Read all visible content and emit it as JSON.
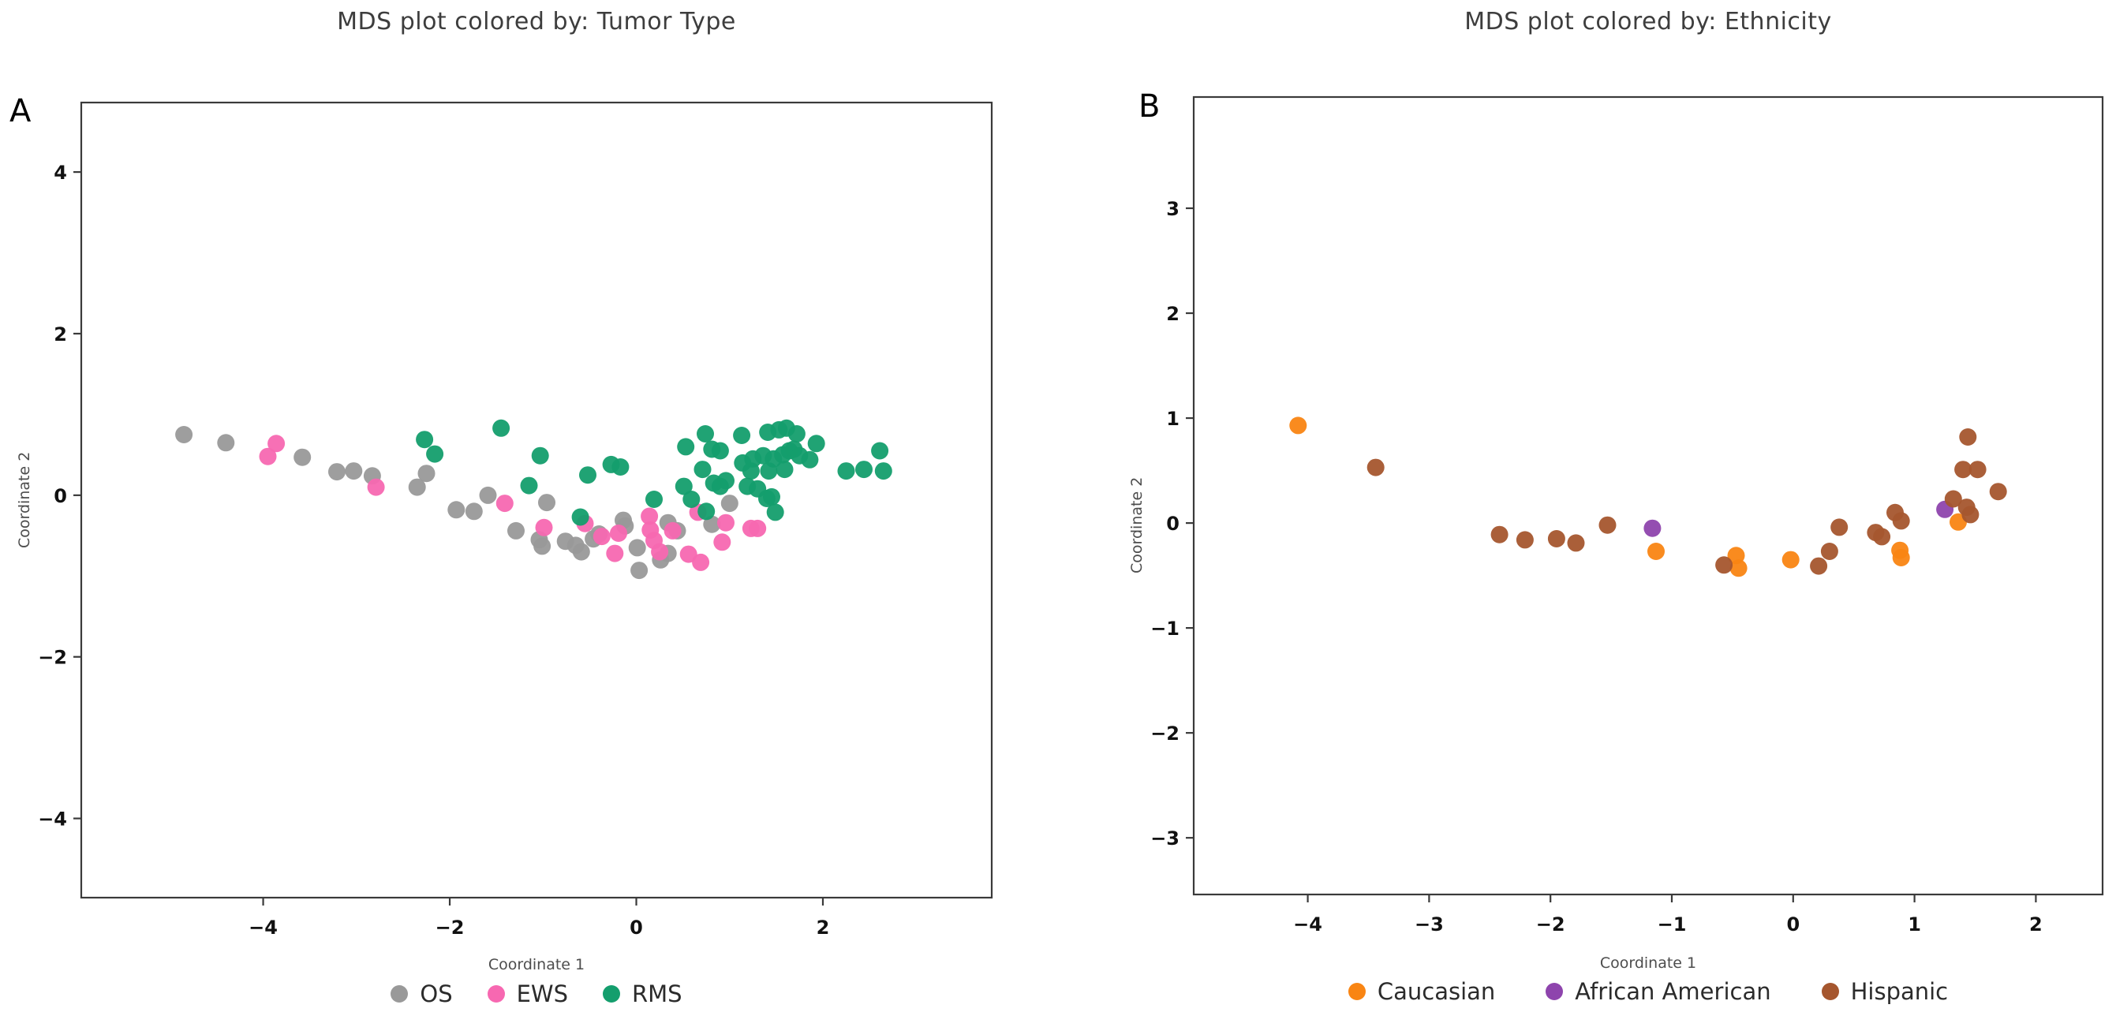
{
  "figure": {
    "background": "#ffffff",
    "spine_color": "#3a3a3a",
    "tick_label_color": "#111111",
    "title_color": "#3d3d3d"
  },
  "chart_data": [
    {
      "type": "scatter",
      "panel_label": "A",
      "title": "MDS plot colored by: Tumor Type",
      "xlabel": "Coordinate 1",
      "ylabel": "Coordinate 2",
      "xlim": [
        -5.95,
        3.81
      ],
      "ylim": [
        -4.98,
        4.86
      ],
      "xticks": [
        -4,
        -2,
        0,
        2
      ],
      "yticks": [
        -4,
        -2,
        0,
        2,
        4
      ],
      "grid": false,
      "legend_position": "bottom",
      "series": [
        {
          "name": "OS",
          "color": "#999999",
          "points": [
            [
              -4.85,
              0.75
            ],
            [
              -4.4,
              0.65
            ],
            [
              -3.58,
              0.47
            ],
            [
              -3.21,
              0.29
            ],
            [
              -3.03,
              0.3
            ],
            [
              -2.83,
              0.24
            ],
            [
              -2.35,
              0.1
            ],
            [
              -2.25,
              0.27
            ],
            [
              -1.93,
              -0.18
            ],
            [
              -1.74,
              -0.2
            ],
            [
              -1.59,
              0.0
            ],
            [
              -1.29,
              -0.44
            ],
            [
              -1.04,
              -0.55
            ],
            [
              -1.01,
              -0.63
            ],
            [
              -0.96,
              -0.09
            ],
            [
              -0.76,
              -0.57
            ],
            [
              -0.65,
              -0.62
            ],
            [
              -0.59,
              -0.7
            ],
            [
              -0.46,
              -0.54
            ],
            [
              -0.4,
              -0.48
            ],
            [
              -0.14,
              -0.31
            ],
            [
              -0.12,
              -0.38
            ],
            [
              0.01,
              -0.65
            ],
            [
              0.03,
              -0.93
            ],
            [
              0.26,
              -0.8
            ],
            [
              0.34,
              -0.72
            ],
            [
              0.44,
              -0.44
            ],
            [
              0.34,
              -0.34
            ],
            [
              0.81,
              -0.36
            ],
            [
              1.0,
              -0.1
            ]
          ]
        },
        {
          "name": "EWS",
          "color": "#f768b1",
          "points": [
            [
              -3.95,
              0.48
            ],
            [
              -3.86,
              0.64
            ],
            [
              -2.79,
              0.1
            ],
            [
              -1.41,
              -0.1
            ],
            [
              -0.99,
              -0.4
            ],
            [
              -0.55,
              -0.35
            ],
            [
              -0.37,
              -0.51
            ],
            [
              -0.23,
              -0.72
            ],
            [
              -0.19,
              -0.47
            ],
            [
              0.14,
              -0.26
            ],
            [
              0.15,
              -0.43
            ],
            [
              0.19,
              -0.56
            ],
            [
              0.25,
              -0.7
            ],
            [
              0.39,
              -0.44
            ],
            [
              0.56,
              -0.73
            ],
            [
              0.66,
              -0.21
            ],
            [
              0.69,
              -0.83
            ],
            [
              0.92,
              -0.58
            ],
            [
              0.96,
              -0.34
            ],
            [
              1.23,
              -0.41
            ],
            [
              1.3,
              -0.41
            ]
          ]
        },
        {
          "name": "RMS",
          "color": "#149e6d",
          "points": [
            [
              -2.27,
              0.69
            ],
            [
              -2.16,
              0.51
            ],
            [
              -1.45,
              0.83
            ],
            [
              -1.15,
              0.12
            ],
            [
              -1.03,
              0.49
            ],
            [
              -0.6,
              -0.27
            ],
            [
              -0.52,
              0.25
            ],
            [
              -0.27,
              0.38
            ],
            [
              -0.17,
              0.35
            ],
            [
              0.19,
              -0.05
            ],
            [
              0.51,
              0.11
            ],
            [
              0.53,
              0.6
            ],
            [
              0.59,
              -0.05
            ],
            [
              0.71,
              0.32
            ],
            [
              0.74,
              0.76
            ],
            [
              0.75,
              -0.2
            ],
            [
              0.81,
              0.57
            ],
            [
              0.83,
              0.15
            ],
            [
              0.9,
              0.55
            ],
            [
              0.9,
              0.11
            ],
            [
              0.96,
              0.18
            ],
            [
              1.13,
              0.74
            ],
            [
              1.14,
              0.4
            ],
            [
              1.19,
              0.11
            ],
            [
              1.23,
              0.3
            ],
            [
              1.25,
              0.45
            ],
            [
              1.3,
              0.08
            ],
            [
              1.36,
              0.49
            ],
            [
              1.4,
              -0.04
            ],
            [
              1.41,
              0.78
            ],
            [
              1.42,
              0.3
            ],
            [
              1.45,
              -0.02
            ],
            [
              1.47,
              0.45
            ],
            [
              1.49,
              -0.21
            ],
            [
              1.53,
              0.81
            ],
            [
              1.57,
              0.5
            ],
            [
              1.59,
              0.32
            ],
            [
              1.61,
              0.83
            ],
            [
              1.64,
              0.55
            ],
            [
              1.69,
              0.57
            ],
            [
              1.72,
              0.76
            ],
            [
              1.75,
              0.49
            ],
            [
              1.86,
              0.44
            ],
            [
              1.93,
              0.64
            ],
            [
              2.25,
              0.3
            ],
            [
              2.44,
              0.32
            ],
            [
              2.61,
              0.55
            ],
            [
              2.65,
              0.3
            ]
          ]
        }
      ]
    },
    {
      "type": "scatter",
      "panel_label": "B",
      "title": "MDS plot colored by: Ethnicity",
      "xlabel": "Coordinate 1",
      "ylabel": "Coordinate 2",
      "xlim": [
        -4.94,
        2.55
      ],
      "ylim": [
        -3.54,
        4.06
      ],
      "xticks": [
        -4,
        -3,
        -2,
        -1,
        0,
        1,
        2
      ],
      "yticks": [
        -3,
        -2,
        -1,
        0,
        1,
        2,
        3
      ],
      "grid": false,
      "legend_position": "bottom",
      "series": [
        {
          "name": "Caucasian",
          "color": "#f98513",
          "points": [
            [
              -4.08,
              0.93
            ],
            [
              -1.13,
              -0.27
            ],
            [
              -0.47,
              -0.31
            ],
            [
              -0.45,
              -0.43
            ],
            [
              -0.02,
              -0.35
            ],
            [
              0.88,
              -0.26
            ],
            [
              0.89,
              -0.33
            ],
            [
              1.36,
              0.01
            ]
          ]
        },
        {
          "name": "African American",
          "color": "#8e44ad",
          "points": [
            [
              -1.16,
              -0.05
            ],
            [
              1.25,
              0.13
            ]
          ]
        },
        {
          "name": "Hispanic",
          "color": "#a5562e",
          "points": [
            [
              -3.44,
              0.53
            ],
            [
              -2.42,
              -0.11
            ],
            [
              -2.21,
              -0.16
            ],
            [
              -1.95,
              -0.15
            ],
            [
              -1.79,
              -0.19
            ],
            [
              -1.53,
              -0.02
            ],
            [
              -0.57,
              -0.4
            ],
            [
              0.21,
              -0.41
            ],
            [
              0.3,
              -0.27
            ],
            [
              0.38,
              -0.04
            ],
            [
              0.68,
              -0.09
            ],
            [
              0.73,
              -0.13
            ],
            [
              0.84,
              0.1
            ],
            [
              0.89,
              0.02
            ],
            [
              1.32,
              0.23
            ],
            [
              1.4,
              0.51
            ],
            [
              1.43,
              0.15
            ],
            [
              1.44,
              0.82
            ],
            [
              1.46,
              0.08
            ],
            [
              1.52,
              0.51
            ],
            [
              1.69,
              0.3
            ]
          ]
        }
      ]
    }
  ]
}
